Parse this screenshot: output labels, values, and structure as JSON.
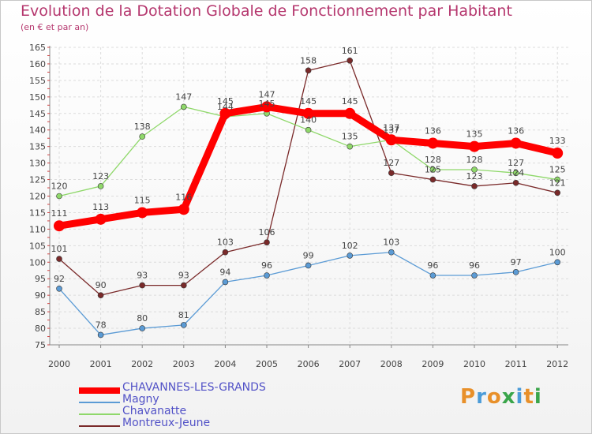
{
  "title": "Evolution de la Dotation Globale de Fonctionnement par Habitant",
  "subtitle": "(en € et par an)",
  "logo_text": "Proxiti",
  "chart_data": {
    "type": "line",
    "x": [
      2000,
      2001,
      2002,
      2003,
      2004,
      2005,
      2006,
      2007,
      2008,
      2009,
      2010,
      2011,
      2012
    ],
    "ylim": [
      75,
      165
    ],
    "yticks": [
      75,
      80,
      85,
      90,
      95,
      100,
      105,
      110,
      115,
      120,
      125,
      130,
      135,
      140,
      145,
      150,
      155,
      160,
      165
    ],
    "grid": true,
    "legend_position": "bottom-left",
    "series": [
      {
        "name": "CHAVANNES-LES-GRANDS",
        "color": "#ff0000",
        "values": [
          111,
          113,
          115,
          116,
          145,
          147,
          145,
          145,
          137,
          136,
          135,
          136,
          133
        ]
      },
      {
        "name": "Magny",
        "color": "#5b9bd5",
        "values": [
          92,
          78,
          80,
          81,
          94,
          96,
          99,
          102,
          103,
          96,
          96,
          97,
          100
        ]
      },
      {
        "name": "Chavanatte",
        "color": "#8fd86a",
        "values": [
          120,
          123,
          138,
          147,
          144,
          145,
          140,
          135,
          137,
          128,
          128,
          127,
          125
        ]
      },
      {
        "name": "Montreux-Jeune",
        "color": "#7a2a2a",
        "values": [
          101,
          90,
          93,
          93,
          103,
          106,
          158,
          161,
          127,
          125,
          123,
          124,
          121
        ]
      }
    ]
  }
}
